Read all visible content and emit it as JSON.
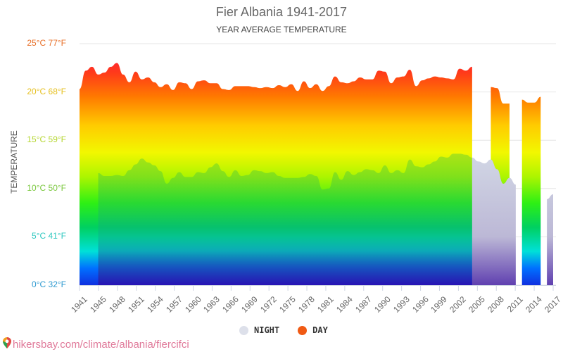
{
  "header": {
    "title": "Fier Albania 1941-2017",
    "subtitle": "YEAR AVERAGE TEMPERATURE"
  },
  "y_axis": {
    "label": "TEMPERATURE",
    "ticks": [
      {
        "label": "25°C 77°F",
        "value": 25,
        "color": "#e8702a"
      },
      {
        "label": "20°C 68°F",
        "value": 20,
        "color": "#e6c020"
      },
      {
        "label": "15°C 59°F",
        "value": 15,
        "color": "#b5d630"
      },
      {
        "label": "10°C 50°F",
        "value": 10,
        "color": "#7cc840"
      },
      {
        "label": "5°C 41°F",
        "value": 5,
        "color": "#30c8c0"
      },
      {
        "label": "0°C 32°F",
        "value": 0,
        "color": "#2e9ad0"
      }
    ]
  },
  "x_axis": {
    "ticks": [
      "1941",
      "1945",
      "1948",
      "1951",
      "1954",
      "1957",
      "1960",
      "1963",
      "1966",
      "1969",
      "1972",
      "1975",
      "1978",
      "1981",
      "1984",
      "1987",
      "1990",
      "1993",
      "1996",
      "1999",
      "2002",
      "2005",
      "2008",
      "2011",
      "2014",
      "2017"
    ]
  },
  "legend": {
    "night": {
      "label": "NIGHT",
      "color": "#dde0ea"
    },
    "day": {
      "label": "DAY",
      "color": "#f05a14"
    }
  },
  "source": {
    "text": "hikersbay.com/climate/albania/fiercifci",
    "icon": "map-pin-icon"
  },
  "chart_data": {
    "type": "area",
    "title": "Fier Albania 1941-2017",
    "subtitle": "YEAR AVERAGE TEMPERATURE",
    "xlabel": "",
    "ylabel": "TEMPERATURE",
    "ylim": [
      0,
      25
    ],
    "y_unit": "°C",
    "grid": true,
    "legend_position": "bottom",
    "x": [
      1941,
      1942,
      1943,
      1944,
      1945,
      1946,
      1947,
      1948,
      1949,
      1950,
      1951,
      1952,
      1953,
      1954,
      1955,
      1956,
      1957,
      1958,
      1959,
      1960,
      1961,
      1962,
      1963,
      1964,
      1965,
      1966,
      1967,
      1968,
      1969,
      1970,
      1971,
      1972,
      1973,
      1974,
      1975,
      1976,
      1977,
      1978,
      1979,
      1980,
      1981,
      1982,
      1983,
      1984,
      1985,
      1986,
      1987,
      1988,
      1989,
      1990,
      1991,
      1992,
      1993,
      1994,
      1995,
      1996,
      1997,
      1998,
      1999,
      2000,
      2001,
      2002,
      2003,
      2004,
      2005,
      2006,
      2007,
      2008,
      2009,
      2010,
      2011,
      2012,
      2013,
      2014,
      2015,
      2016,
      2017
    ],
    "series": [
      {
        "name": "DAY",
        "color": "#f05a14",
        "values": [
          20.3,
          22.2,
          22.6,
          21.8,
          22.0,
          22.6,
          23.0,
          21.8,
          21.0,
          22.1,
          21.3,
          21.5,
          21.0,
          20.5,
          20.8,
          20.2,
          21.0,
          20.9,
          20.3,
          21.1,
          21.2,
          20.9,
          20.9,
          20.3,
          20.2,
          20.6,
          20.6,
          20.6,
          20.5,
          20.4,
          20.5,
          20.4,
          20.7,
          20.5,
          20.8,
          20.1,
          21.1,
          20.4,
          20.8,
          20.1,
          20.6,
          21.6,
          21.0,
          20.9,
          21.1,
          21.5,
          21.3,
          21.3,
          22.2,
          22.1,
          20.9,
          21.5,
          21.6,
          22.3,
          20.6,
          21.2,
          21.4,
          21.6,
          21.5,
          21.4,
          21.3,
          22.4,
          22.2,
          22.6,
          null,
          null,
          20.5,
          20.4,
          18.8,
          18.8,
          null,
          19.2,
          18.9,
          18.9,
          19.5,
          null,
          null
        ]
      },
      {
        "name": "NIGHT",
        "color": "#dde0ea",
        "values": [
          null,
          null,
          null,
          11.6,
          11.3,
          11.3,
          11.4,
          11.3,
          11.9,
          12.5,
          13.1,
          12.7,
          12.4,
          11.8,
          10.5,
          11.1,
          11.7,
          11.2,
          11.2,
          11.7,
          11.6,
          12.2,
          12.6,
          11.8,
          11.2,
          11.9,
          11.3,
          11.4,
          11.9,
          11.8,
          11.6,
          11.7,
          11.3,
          11.1,
          11.1,
          11.1,
          11.2,
          11.5,
          11.3,
          9.9,
          10.0,
          11.7,
          10.9,
          11.8,
          11.4,
          11.7,
          12.0,
          11.9,
          11.6,
          12.4,
          11.6,
          11.9,
          11.6,
          13.0,
          12.3,
          12.2,
          12.5,
          12.8,
          13.3,
          13.2,
          13.6,
          13.6,
          13.5,
          13.2,
          12.8,
          12.6,
          13.0,
          12.0,
          10.5,
          11.1,
          10.4,
          null,
          null,
          null,
          null,
          8.9,
          9.4
        ]
      }
    ]
  }
}
